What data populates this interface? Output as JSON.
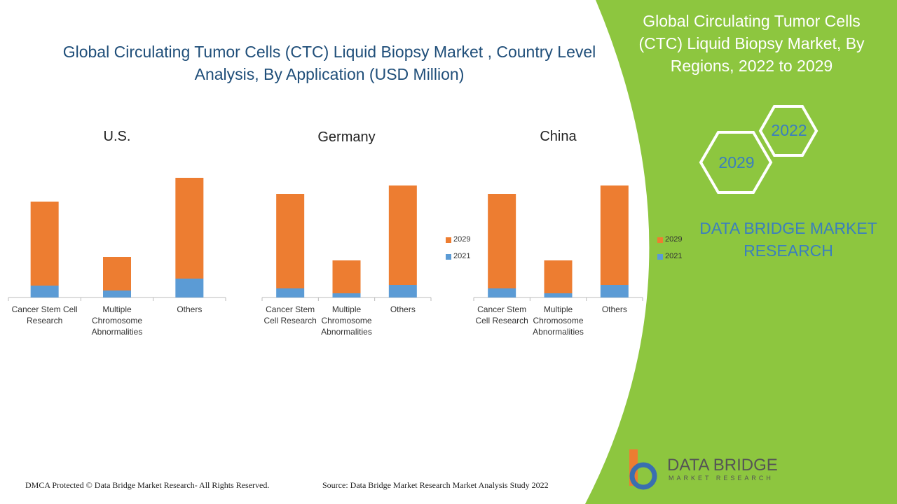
{
  "title": "Global Circulating Tumor Cells (CTC) Liquid Biopsy Market , Country Level Analysis, By Application (USD Million)",
  "chart_data": [
    {
      "type": "bar",
      "stacked": true,
      "title": "U.S.",
      "legend": false,
      "categories": [
        "Cancer Stem Cell Research",
        "Multiple Chromosome Abnormalities",
        "Others"
      ],
      "series": [
        {
          "color": "#5b9bd5",
          "values": [
            17,
            10,
            27
          ]
        },
        {
          "color": "#ed7d31",
          "values": [
            120,
            48,
            144
          ]
        }
      ],
      "ylim": [
        0,
        180
      ]
    },
    {
      "type": "bar",
      "stacked": true,
      "title": "Germany",
      "legend": true,
      "categories": [
        "Cancer Stem Cell Research",
        "Multiple Chromosome Abnormalities",
        "Others"
      ],
      "series": [
        {
          "name": "2021",
          "color": "#5b9bd5",
          "values": [
            13,
            6,
            18
          ]
        },
        {
          "name": "2029",
          "color": "#ed7d31",
          "values": [
            135,
            47,
            142
          ]
        }
      ],
      "ylim": [
        0,
        180
      ]
    },
    {
      "type": "bar",
      "stacked": true,
      "title": "China",
      "legend": true,
      "categories": [
        "Cancer Stem Cell Research",
        "Multiple Chromosome Abnormalities",
        "Others"
      ],
      "series": [
        {
          "name": "2021",
          "color": "#5b9bd5",
          "values": [
            13,
            6,
            18
          ]
        },
        {
          "name": "2029",
          "color": "#ed7d31",
          "values": [
            135,
            47,
            142
          ]
        }
      ],
      "ylim": [
        0,
        180
      ]
    }
  ],
  "sidebar": {
    "title": "Global Circulating Tumor Cells (CTC) Liquid Biopsy Market, By Regions, 2022 to 2029",
    "hexagons": [
      "2022",
      "2029"
    ],
    "brand": "DATA BRIDGE MARKET RESEARCH"
  },
  "logo": {
    "name": "DATA BRIDGE",
    "tagline": "MARKET RESEARCH"
  },
  "footer": {
    "copyright": "DMCA Protected © Data Bridge Market Research- All Rights Reserved.",
    "source": "Source: Data Bridge Market Research Market Analysis Study 2022"
  }
}
